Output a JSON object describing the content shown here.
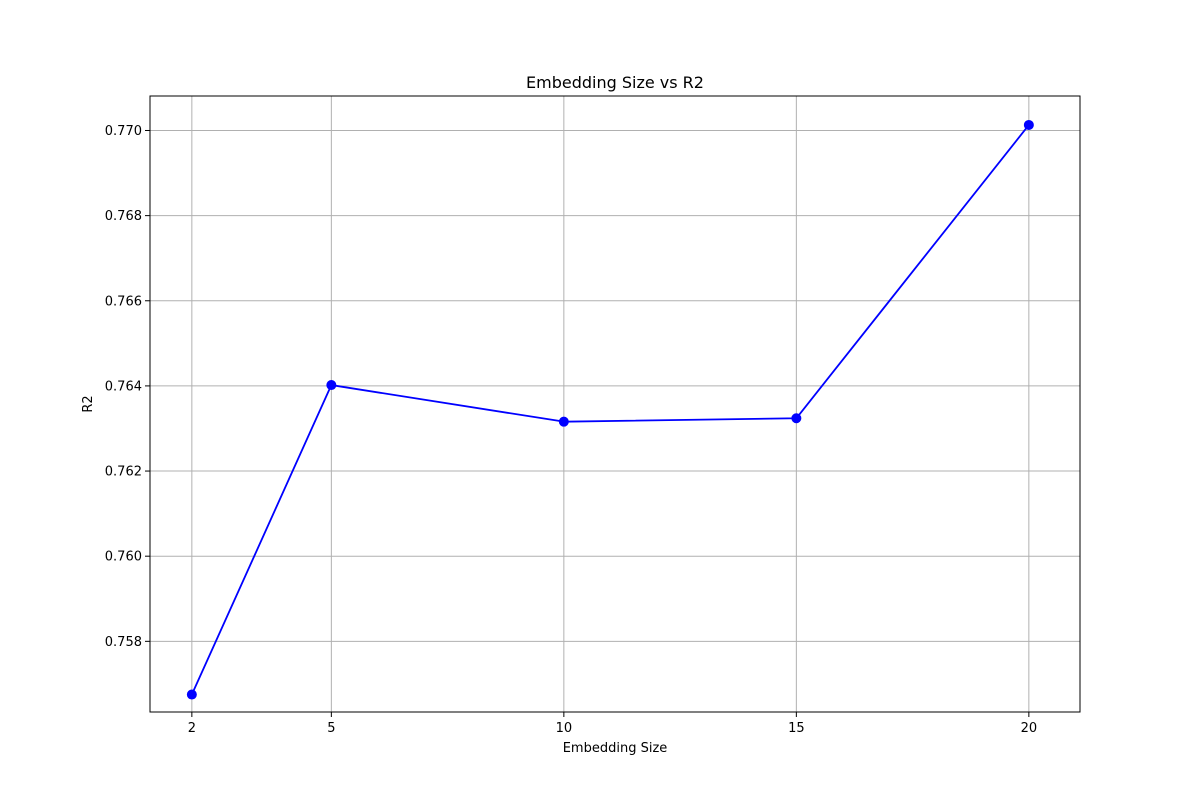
{
  "chart_data": {
    "type": "line",
    "title": "Embedding Size vs R2",
    "xlabel": "Embedding Size",
    "ylabel": "R2",
    "x": [
      2,
      5,
      10,
      15,
      20
    ],
    "series": [
      {
        "values": [
          0.75675,
          0.76402,
          0.76316,
          0.76324,
          0.77013
        ],
        "color": "#0000ff",
        "marker": "circle"
      }
    ],
    "xticks": [
      2,
      5,
      10,
      15,
      20
    ],
    "xtick_labels": [
      "2",
      "5",
      "10",
      "15",
      "20"
    ],
    "yticks": [
      0.758,
      0.76,
      0.762,
      0.764,
      0.766,
      0.768,
      0.77
    ],
    "ytick_labels": [
      "0.758",
      "0.760",
      "0.762",
      "0.764",
      "0.766",
      "0.768",
      "0.770"
    ],
    "xlim": [
      1.1,
      21.1
    ],
    "ylim": [
      0.75634,
      0.77081
    ],
    "grid": true,
    "legend": false
  }
}
